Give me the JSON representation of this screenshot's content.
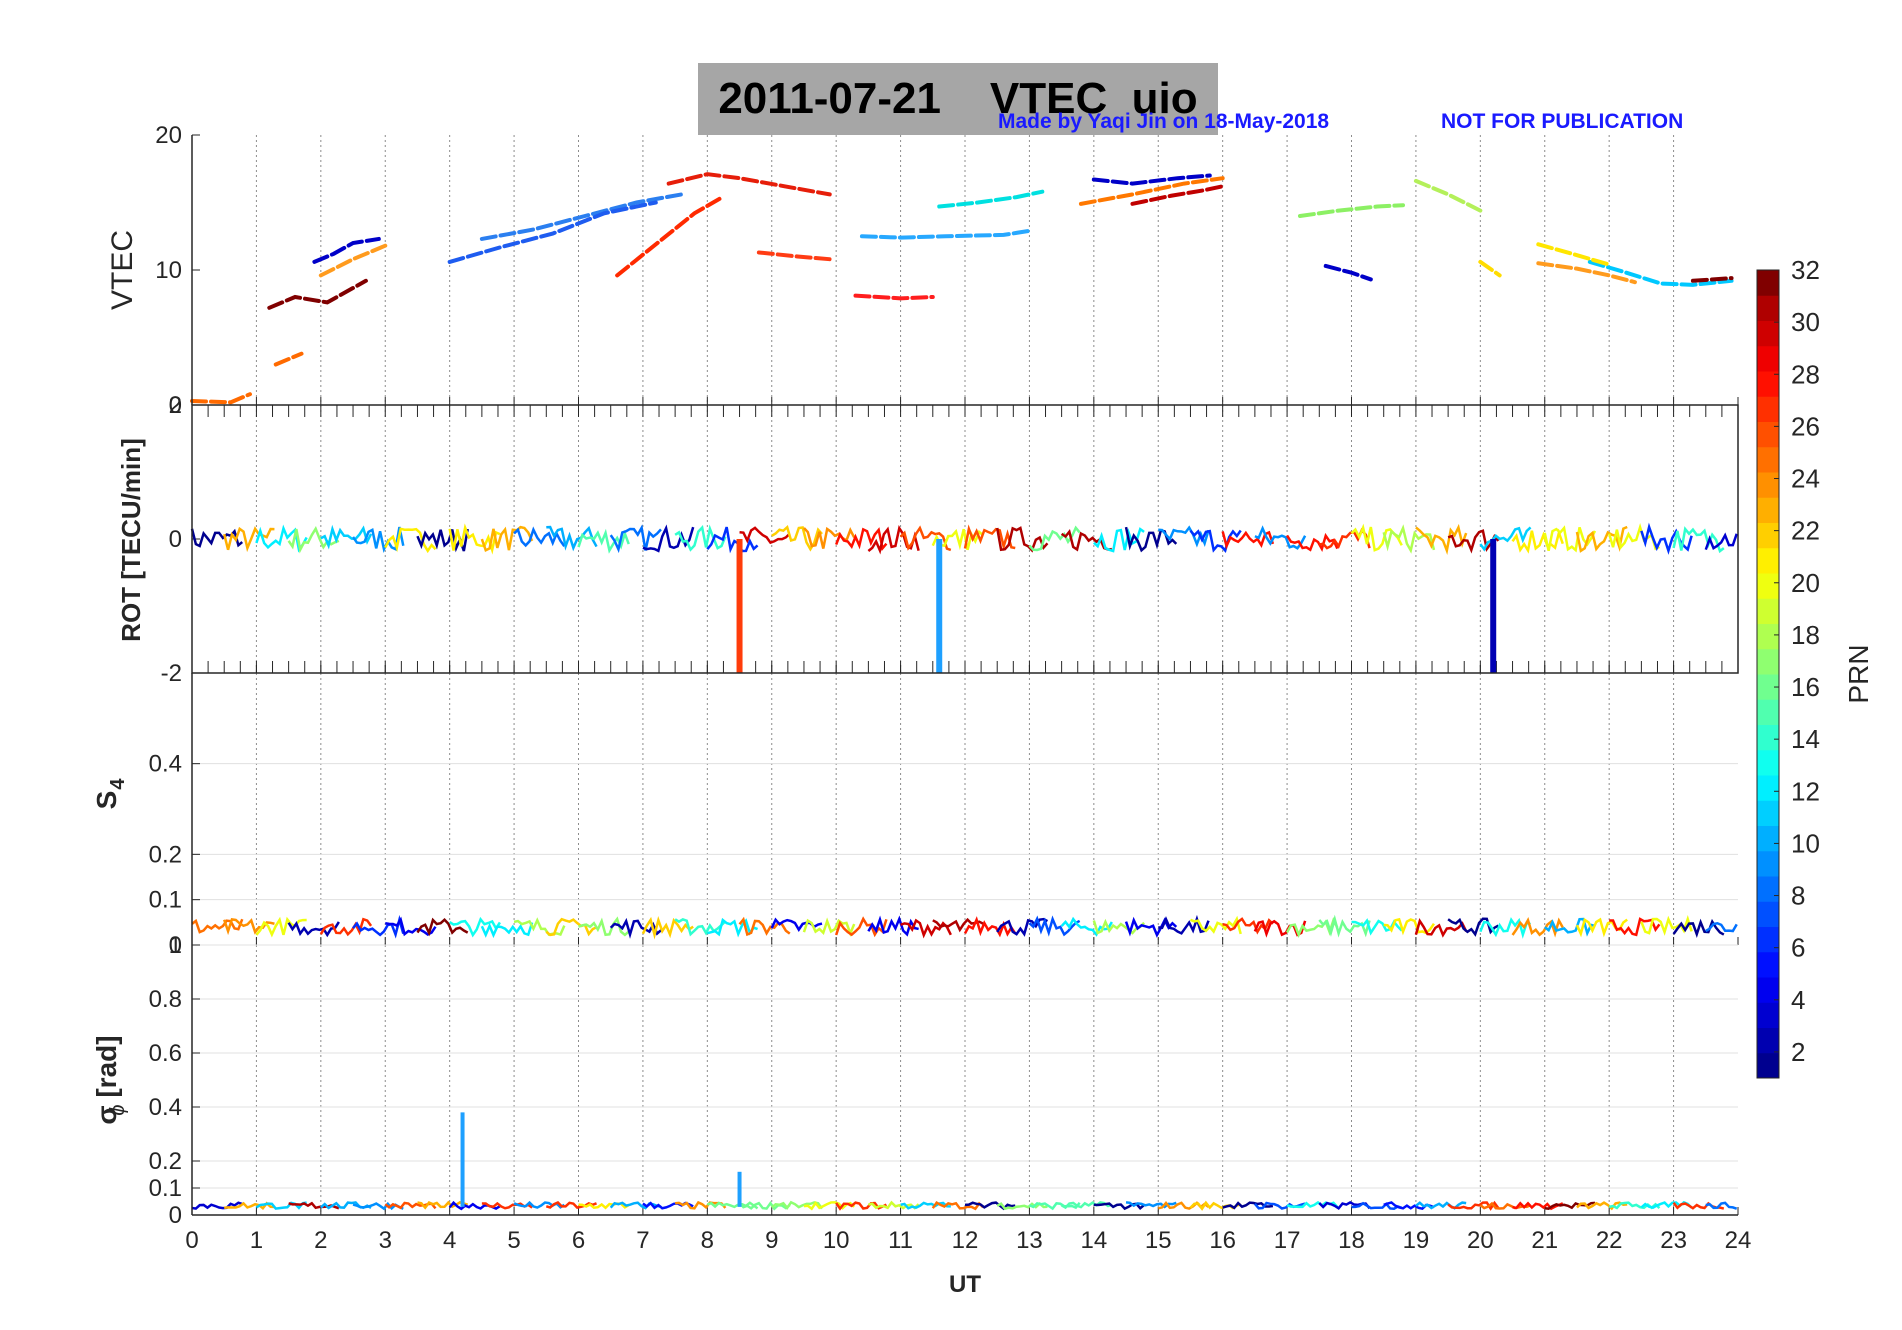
{
  "header": {
    "title": "2011-07-21    VTEC  uio",
    "credit": "Made by Yaqi Jin on 18-May-2018",
    "notice": "NOT FOR PUBLICATION",
    "credit_color": "#1a1aff"
  },
  "chart_data": [
    {
      "type": "line",
      "panel": "VTEC",
      "ylabel": "VTEC",
      "xlabel": "",
      "xlim": [
        0,
        24
      ],
      "ylim": [
        0,
        20
      ],
      "yticks": [
        "0",
        "10",
        "20"
      ],
      "grid": "vertical dotted",
      "series": [
        {
          "color": "#0000c8",
          "x": [
            1.9,
            2.2,
            2.5,
            2.9
          ],
          "y": [
            10.6,
            11.2,
            12.0,
            12.3
          ]
        },
        {
          "color": "#ff9b1e",
          "x": [
            2.0,
            2.5,
            3.0
          ],
          "y": [
            9.6,
            10.8,
            11.8
          ]
        },
        {
          "color": "#800000",
          "x": [
            1.2,
            1.6,
            2.1,
            2.7
          ],
          "y": [
            7.2,
            8.0,
            7.6,
            9.2
          ]
        },
        {
          "color": "#2b7ff0",
          "x": [
            4.5,
            5.3,
            6.1,
            6.9,
            7.6
          ],
          "y": [
            12.3,
            13.0,
            14.0,
            15.0,
            15.6
          ]
        },
        {
          "color": "#1e5cf0",
          "x": [
            4.0,
            4.8,
            5.6,
            6.4,
            7.2
          ],
          "y": [
            10.6,
            11.7,
            12.7,
            14.2,
            15.0
          ]
        },
        {
          "color": "#ff2a00",
          "x": [
            6.6,
            7.2,
            7.8,
            8.2
          ],
          "y": [
            9.6,
            11.9,
            14.2,
            15.3
          ]
        },
        {
          "color": "#e61e0a",
          "x": [
            7.4,
            8.0,
            8.5,
            9.2,
            9.9
          ],
          "y": [
            16.4,
            17.1,
            16.8,
            16.2,
            15.6
          ]
        },
        {
          "color": "#ff3c14",
          "x": [
            8.8,
            9.4,
            9.9
          ],
          "y": [
            11.3,
            11.0,
            10.8
          ]
        },
        {
          "color": "#ff1e1e",
          "x": [
            10.3,
            11.0,
            11.5
          ],
          "y": [
            8.1,
            7.9,
            8.0
          ]
        },
        {
          "color": "#27a8ff",
          "x": [
            10.4,
            11.0,
            11.7,
            12.6,
            13.0
          ],
          "y": [
            12.5,
            12.4,
            12.5,
            12.6,
            12.9
          ]
        },
        {
          "color": "#00e0e0",
          "x": [
            11.6,
            12.2,
            12.8,
            13.2
          ],
          "y": [
            14.7,
            15.0,
            15.4,
            15.8
          ]
        },
        {
          "color": "#ff7800",
          "x": [
            13.8,
            14.6,
            15.4,
            16.0
          ],
          "y": [
            14.9,
            15.6,
            16.4,
            16.8
          ]
        },
        {
          "color": "#c00000",
          "x": [
            14.6,
            15.2,
            15.7,
            16.0
          ],
          "y": [
            14.9,
            15.5,
            15.9,
            16.2
          ]
        },
        {
          "color": "#0000c8",
          "x": [
            14.0,
            14.6,
            15.3,
            15.8
          ],
          "y": [
            16.7,
            16.4,
            16.8,
            17.0
          ]
        },
        {
          "color": "#8cf064",
          "x": [
            17.2,
            17.8,
            18.4,
            18.8
          ],
          "y": [
            14.0,
            14.4,
            14.7,
            14.8
          ]
        },
        {
          "color": "#b4f05a",
          "x": [
            19.0,
            19.5,
            20.0
          ],
          "y": [
            16.6,
            15.6,
            14.4
          ]
        },
        {
          "color": "#0000c8",
          "x": [
            17.6,
            18.0,
            18.3
          ],
          "y": [
            10.3,
            9.8,
            9.3
          ]
        },
        {
          "color": "#ffdc00",
          "x": [
            20.0,
            20.3
          ],
          "y": [
            10.6,
            9.6
          ]
        },
        {
          "color": "#00c8ff",
          "x": [
            21.7,
            22.2,
            22.8,
            23.3,
            23.9
          ],
          "y": [
            10.6,
            9.9,
            9.0,
            8.9,
            9.2
          ]
        },
        {
          "color": "#ff9b1e",
          "x": [
            20.9,
            21.5,
            22.0,
            22.4
          ],
          "y": [
            10.5,
            10.1,
            9.6,
            9.1
          ]
        },
        {
          "color": "#ffe600",
          "x": [
            20.9,
            21.5,
            22.0
          ],
          "y": [
            11.9,
            11.1,
            10.4
          ]
        },
        {
          "color": "#800000",
          "x": [
            23.3,
            23.9
          ],
          "y": [
            9.2,
            9.4
          ]
        },
        {
          "color": "#ff6a00",
          "x": [
            0.0,
            0.6,
            0.9
          ],
          "y": [
            0.3,
            0.2,
            0.8
          ]
        },
        {
          "color": "#ff6a00",
          "x": [
            1.3,
            1.7
          ],
          "y": [
            3.0,
            3.8
          ]
        }
      ]
    },
    {
      "type": "line",
      "panel": "ROT",
      "ylabel": "ROT [TECU/min]",
      "xlabel": "",
      "xlim": [
        0,
        24
      ],
      "ylim": [
        -2,
        2
      ],
      "yticks": [
        "-2",
        "0",
        "2"
      ],
      "grid": "vertical dotted",
      "spikes": [
        {
          "x": 8.5,
          "from": 0,
          "to": -2,
          "color": "#ff3c0a"
        },
        {
          "x": 11.6,
          "from": 0,
          "to": -2,
          "color": "#1ea0ff"
        },
        {
          "x": 20.2,
          "from": 0,
          "to": -2,
          "color": "#0000b4"
        }
      ]
    },
    {
      "type": "line",
      "panel": "S4",
      "ylabel": "S",
      "ylabel_sub": "4",
      "xlabel": "",
      "xlim": [
        0,
        24
      ],
      "ylim": [
        0,
        0.6
      ],
      "yticks": [
        "0",
        "0.1",
        "0.2",
        "0.4"
      ],
      "grid": "vertical dotted, horizontal at ticks"
    },
    {
      "type": "line",
      "panel": "SigmaPhi",
      "ylabel": "σ [rad]",
      "ylabel_sub": "ϕ",
      "xlabel": "UT",
      "xlim": [
        0,
        24
      ],
      "ylim": [
        0,
        1
      ],
      "xticks": [
        "0",
        "1",
        "2",
        "3",
        "4",
        "5",
        "6",
        "7",
        "8",
        "9",
        "10",
        "11",
        "12",
        "13",
        "14",
        "15",
        "16",
        "17",
        "18",
        "19",
        "20",
        "21",
        "22",
        "23",
        "24"
      ],
      "yticks": [
        "0",
        "0.1",
        "0.2",
        "0.4",
        "0.6",
        "0.8",
        "1"
      ],
      "grid": "vertical dotted, horizontal at ticks",
      "spikes": [
        {
          "x": 4.2,
          "from": 0.03,
          "to": 0.38,
          "color": "#1ea0ff"
        },
        {
          "x": 8.5,
          "from": 0.03,
          "to": 0.16,
          "color": "#1ea0ff"
        }
      ]
    }
  ],
  "colorbar": {
    "label": "PRN",
    "range": [
      1,
      32
    ],
    "ticks": [
      "2",
      "4",
      "6",
      "8",
      "10",
      "12",
      "14",
      "16",
      "18",
      "20",
      "22",
      "24",
      "26",
      "28",
      "30",
      "32"
    ],
    "colormap": "jet",
    "colors": [
      "#00008f",
      "#0000b0",
      "#0000d0",
      "#0000ef",
      "#0010ff",
      "#0030ff",
      "#0050ff",
      "#0070ff",
      "#0090ff",
      "#00afff",
      "#00cfff",
      "#00efff",
      "#10ffef",
      "#30ffcf",
      "#50ffaf",
      "#70ff8f",
      "#8fff70",
      "#afff50",
      "#cfff30",
      "#efff10",
      "#ffef00",
      "#ffcf00",
      "#ffaf00",
      "#ff9000",
      "#ff7000",
      "#ff5000",
      "#ff3000",
      "#ff1000",
      "#ef0000",
      "#cf0000",
      "#af0000",
      "#800000"
    ]
  }
}
